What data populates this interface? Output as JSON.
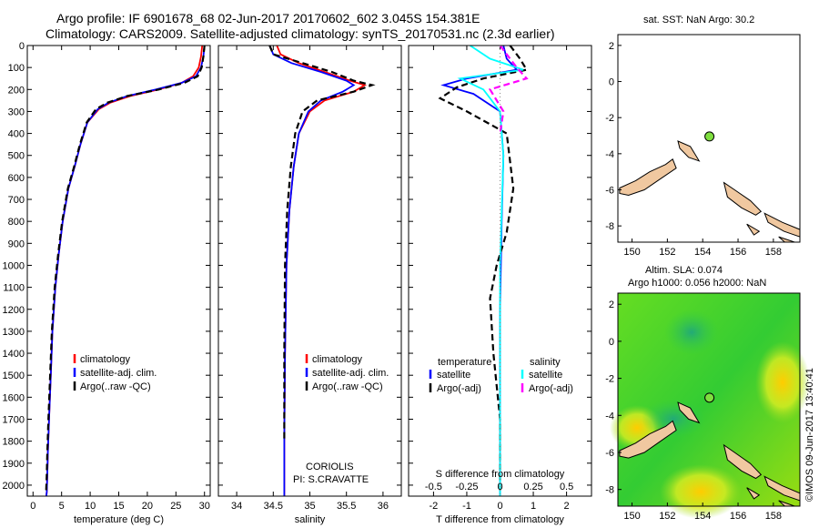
{
  "header": {
    "line1": "Argo profile: IF 6901678_68 02-Jun-2017 20170602_602 3.045S 154.381E",
    "line2": "Climatology: CARS2009. Satellite-adjusted climatology: synTS_20170531.nc (2.3d earlier)"
  },
  "colors": {
    "climatology": "#ff0000",
    "satellite": "#0000ff",
    "argo": "#000000",
    "s_satellite": "#00ffff",
    "s_argo": "#ff00ff",
    "land": "#f0c8a0",
    "argo_marker": "#7fdf3f"
  },
  "chart_data": [
    {
      "type": "line",
      "name": "temperature-profile",
      "xlabel": "temperature (deg C)",
      "ylabel": "",
      "xlim": [
        -1,
        31
      ],
      "ylim": [
        2050,
        0
      ],
      "xticks": [
        0,
        5,
        10,
        15,
        20,
        25,
        30
      ],
      "yticks": [
        0,
        100,
        200,
        300,
        400,
        500,
        600,
        700,
        800,
        900,
        1000,
        1100,
        1200,
        1300,
        1400,
        1500,
        1600,
        1700,
        1800,
        1900,
        2000
      ],
      "legend": [
        "climatology",
        "satellite-adj. clim.",
        "Argo(..raw -QC)"
      ],
      "series": [
        {
          "name": "climatology",
          "color": "climatology",
          "style": "solid",
          "x": [
            29.6,
            29.4,
            29.0,
            28.0,
            26.0,
            22.0,
            17.0,
            13.5,
            11.5,
            9.5,
            8.3,
            7.3,
            6.2,
            5.2,
            4.5,
            3.9,
            3.4,
            3.1,
            2.8,
            2.6,
            2.5,
            2.4,
            2.3
          ],
          "y": [
            0,
            50,
            100,
            140,
            170,
            200,
            230,
            260,
            290,
            350,
            450,
            550,
            650,
            800,
            950,
            1100,
            1300,
            1500,
            1700,
            1850,
            1950,
            2030,
            2060
          ]
        },
        {
          "name": "satellite-adj. clim.",
          "color": "satellite",
          "style": "solid",
          "x": [
            30.0,
            29.8,
            29.4,
            28.5,
            26.0,
            21.5,
            16.5,
            13.2,
            11.3,
            9.5,
            8.3,
            7.3,
            6.2,
            5.2,
            4.5,
            3.9,
            3.4,
            3.1,
            2.8,
            2.6,
            2.5,
            2.4,
            2.3
          ],
          "y": [
            0,
            50,
            100,
            140,
            170,
            200,
            230,
            260,
            290,
            350,
            450,
            550,
            650,
            800,
            950,
            1100,
            1300,
            1500,
            1700,
            1850,
            1950,
            2030,
            2060
          ]
        },
        {
          "name": "Argo(..raw -QC)",
          "color": "argo",
          "style": "dashed",
          "x": [
            30.0,
            29.8,
            29.5,
            28.8,
            26.5,
            22.0,
            16.5,
            13.0,
            11.0,
            9.4,
            8.2,
            7.2,
            6.1,
            5.1,
            4.4,
            3.8,
            3.3,
            3.0,
            2.7,
            2.5,
            2.4,
            2.3
          ],
          "y": [
            0,
            50,
            100,
            140,
            170,
            200,
            230,
            260,
            290,
            350,
            450,
            550,
            650,
            800,
            950,
            1100,
            1300,
            1500,
            1700,
            1850,
            1950,
            2030
          ]
        }
      ]
    },
    {
      "type": "line",
      "name": "salinity-profile",
      "xlabel": "salinity",
      "xlim": [
        33.75,
        36.25
      ],
      "ylim": [
        2050,
        0
      ],
      "xticks": [
        34,
        34.5,
        35,
        35.5,
        36
      ],
      "annotation": [
        "CORIOLIS",
        "PI: S.CRAVATTE"
      ],
      "legend": [
        "climatology",
        "satellite-adj. clim.",
        "Argo(..raw -QC)"
      ],
      "series": [
        {
          "name": "climatology",
          "color": "climatology",
          "style": "solid",
          "x": [
            34.55,
            34.6,
            34.85,
            35.2,
            35.55,
            35.75,
            35.6,
            35.2,
            35.0,
            34.85,
            34.78,
            34.72,
            34.68,
            34.66,
            34.65,
            34.65
          ],
          "y": [
            0,
            40,
            80,
            120,
            160,
            180,
            210,
            250,
            300,
            400,
            550,
            750,
            1000,
            1400,
            1800,
            2060
          ]
        },
        {
          "name": "satellite-adj. clim.",
          "color": "satellite",
          "style": "solid",
          "x": [
            34.45,
            34.5,
            34.75,
            35.15,
            35.5,
            35.6,
            35.45,
            35.15,
            34.98,
            34.85,
            34.78,
            34.72,
            34.68,
            34.66,
            34.65,
            34.65
          ],
          "y": [
            0,
            40,
            80,
            120,
            160,
            180,
            210,
            250,
            300,
            400,
            550,
            750,
            1000,
            1400,
            1800,
            2060
          ]
        },
        {
          "name": "Argo(..raw -QC)",
          "color": "argo",
          "style": "dashed",
          "x": [
            34.45,
            34.5,
            34.9,
            35.3,
            35.6,
            35.85,
            35.6,
            35.1,
            34.9,
            34.8,
            34.74,
            34.69,
            34.66,
            34.65,
            34.65
          ],
          "y": [
            0,
            40,
            80,
            120,
            160,
            180,
            210,
            250,
            300,
            400,
            550,
            750,
            1000,
            1400,
            1800
          ]
        }
      ]
    },
    {
      "type": "line",
      "name": "difference-profile",
      "xlabel": "T difference from climatology",
      "xlabel_top": "S difference from climatology",
      "xlim": [
        -2.75,
        2.75
      ],
      "ylim": [
        2050,
        0
      ],
      "xticks": [
        -2,
        -1,
        0,
        1,
        2
      ],
      "s_xticks": [
        -0.5,
        -0.25,
        0,
        0.25,
        0.5
      ],
      "s_xtick_labels": [
        "-0.5",
        "-0.25",
        "0",
        "0.25",
        "0.5"
      ],
      "legend_headers": [
        "temperature",
        "salinity"
      ],
      "legend": [
        "satellite",
        "Argo(-adj)",
        "satellite",
        "Argo(-adj)"
      ],
      "series": [
        {
          "name": "satellite",
          "group": "temperature",
          "color": "satellite",
          "style": "solid",
          "x": [
            0.1,
            0.2,
            0.5,
            -1.0,
            -1.7,
            -0.8,
            0.0,
            0.1,
            0.05,
            0.0,
            0.0,
            0.0
          ],
          "y": [
            0,
            60,
            110,
            150,
            180,
            220,
            300,
            500,
            800,
            1200,
            1600,
            2060
          ]
        },
        {
          "name": "Argo(-adj)",
          "group": "temperature",
          "color": "argo",
          "style": "dashed",
          "x": [
            0.3,
            0.6,
            0.8,
            -0.5,
            -1.3,
            -1.8,
            -1.0,
            0.2,
            0.4,
            0.2,
            -0.1,
            -0.3,
            -0.2,
            0.0,
            0.0
          ],
          "y": [
            0,
            60,
            110,
            150,
            190,
            240,
            300,
            400,
            650,
            850,
            1000,
            1150,
            1400,
            1700,
            2030
          ]
        },
        {
          "name": "satellite",
          "group": "salinity",
          "color": "s_satellite",
          "style": "solid",
          "x": [
            -0.9,
            -0.3,
            0.7,
            -1.2,
            -0.5,
            0.0,
            0.1,
            0.0,
            0.0
          ],
          "y": [
            0,
            60,
            110,
            150,
            200,
            300,
            500,
            1000,
            2060
          ]
        },
        {
          "name": "Argo(-adj)",
          "group": "salinity",
          "color": "s_argo",
          "style": "dashed",
          "x": [
            0.0,
            0.3,
            0.5,
            0.8,
            -0.3,
            0.1,
            0.0
          ],
          "y": [
            0,
            60,
            100,
            150,
            200,
            300,
            400
          ]
        }
      ]
    },
    {
      "type": "scatter",
      "name": "sst-map",
      "title": "sat. SST: NaN Argo: 30.2",
      "xlim": [
        149.2,
        159.5
      ],
      "ylim": [
        -8.9,
        2.6
      ],
      "xticks": [
        150,
        152,
        154,
        156,
        158
      ],
      "yticks": [
        2,
        0,
        -2,
        -4,
        -6,
        -8
      ],
      "points": [
        {
          "x": 154.381,
          "y": -3.045
        }
      ]
    },
    {
      "type": "heatmap",
      "name": "sla-map",
      "title_line1": "Altim. SLA: 0.074",
      "title_line2": "Argo h1000: 0.056 h2000: NaN",
      "xlim": [
        149.2,
        159.5
      ],
      "ylim": [
        -8.9,
        2.6
      ],
      "xticks": [
        150,
        152,
        154,
        156,
        158
      ],
      "yticks": [
        2,
        0,
        -2,
        -4,
        -6,
        -8
      ],
      "points": [
        {
          "x": 154.381,
          "y": -3.045
        }
      ]
    }
  ],
  "watermark": "©IMOS 09-Jun-2017 13:40:41"
}
